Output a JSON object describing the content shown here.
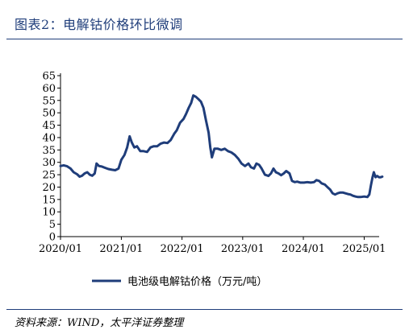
{
  "figure": {
    "title": "图表2：电解钴价格环比微调",
    "source": "资料来源：WIND，太平洋证券整理"
  },
  "colors": {
    "title": "#1f3d7a",
    "series": "#1f3d7a",
    "axis": "#000000"
  },
  "chart_data": {
    "type": "line",
    "title": "",
    "xlabel": "",
    "ylabel": "",
    "ylim": [
      0,
      65
    ],
    "yticks": [
      "0",
      "5",
      "10",
      "15",
      "20",
      "25",
      "30",
      "35",
      "40",
      "45",
      "50",
      "55",
      "60",
      "65"
    ],
    "xlim": [
      "2020-01",
      "2025-04"
    ],
    "xticks": [
      "2020/01",
      "2021/01",
      "2022/01",
      "2023/01",
      "2024/01",
      "2025/01"
    ],
    "grid": false,
    "legend": "bottom",
    "series": [
      {
        "name": "电池级电解钴价格（万元/吨）",
        "points": [
          [
            "2020-01-01",
            28.5
          ],
          [
            "2020-01-20",
            28.8
          ],
          [
            "2020-02-10",
            28.4
          ],
          [
            "2020-03-01",
            27.5
          ],
          [
            "2020-03-20",
            26.0
          ],
          [
            "2020-04-10",
            25.2
          ],
          [
            "2020-04-25",
            24.2
          ],
          [
            "2020-05-10",
            24.6
          ],
          [
            "2020-05-25",
            25.5
          ],
          [
            "2020-06-10",
            26.0
          ],
          [
            "2020-06-25",
            25.0
          ],
          [
            "2020-07-10",
            24.6
          ],
          [
            "2020-07-25",
            25.5
          ],
          [
            "2020-08-05",
            29.5
          ],
          [
            "2020-08-20",
            28.5
          ],
          [
            "2020-09-05",
            28.3
          ],
          [
            "2020-09-25",
            27.8
          ],
          [
            "2020-10-15",
            27.3
          ],
          [
            "2020-11-05",
            27.0
          ],
          [
            "2020-11-25",
            26.8
          ],
          [
            "2020-12-15",
            27.5
          ],
          [
            "2021-01-01",
            31.0
          ],
          [
            "2021-01-20",
            33.0
          ],
          [
            "2021-02-05",
            36.0
          ],
          [
            "2021-02-20",
            40.5
          ],
          [
            "2021-03-05",
            38.0
          ],
          [
            "2021-03-20",
            36.0
          ],
          [
            "2021-04-05",
            36.5
          ],
          [
            "2021-04-25",
            34.5
          ],
          [
            "2021-05-15",
            34.5
          ],
          [
            "2021-06-05",
            34.2
          ],
          [
            "2021-06-25",
            36.0
          ],
          [
            "2021-07-15",
            36.5
          ],
          [
            "2021-08-05",
            36.5
          ],
          [
            "2021-08-25",
            37.5
          ],
          [
            "2021-09-15",
            38.0
          ],
          [
            "2021-10-05",
            37.8
          ],
          [
            "2021-10-25",
            39.0
          ],
          [
            "2021-11-15",
            41.5
          ],
          [
            "2021-12-01",
            43.0
          ],
          [
            "2021-12-20",
            46.0
          ],
          [
            "2022-01-10",
            47.5
          ],
          [
            "2022-01-25",
            49.5
          ],
          [
            "2022-02-10",
            52.0
          ],
          [
            "2022-02-25",
            54.0
          ],
          [
            "2022-03-10",
            57.0
          ],
          [
            "2022-03-25",
            56.5
          ],
          [
            "2022-04-10",
            55.5
          ],
          [
            "2022-04-25",
            54.5
          ],
          [
            "2022-05-10",
            52.0
          ],
          [
            "2022-05-25",
            47.0
          ],
          [
            "2022-06-10",
            42.0
          ],
          [
            "2022-06-20",
            36.0
          ],
          [
            "2022-06-30",
            32.0
          ],
          [
            "2022-07-15",
            35.5
          ],
          [
            "2022-08-05",
            35.5
          ],
          [
            "2022-08-25",
            35.0
          ],
          [
            "2022-09-15",
            35.5
          ],
          [
            "2022-10-05",
            34.5
          ],
          [
            "2022-10-25",
            34.0
          ],
          [
            "2022-11-15",
            33.0
          ],
          [
            "2022-12-05",
            31.5
          ],
          [
            "2022-12-25",
            29.5
          ],
          [
            "2023-01-15",
            28.5
          ],
          [
            "2023-02-05",
            29.5
          ],
          [
            "2023-02-20",
            28.0
          ],
          [
            "2023-03-10",
            27.5
          ],
          [
            "2023-03-25",
            29.5
          ],
          [
            "2023-04-10",
            29.0
          ],
          [
            "2023-04-25",
            27.5
          ],
          [
            "2023-05-15",
            25.0
          ],
          [
            "2023-06-05",
            24.5
          ],
          [
            "2023-06-20",
            25.5
          ],
          [
            "2023-07-05",
            27.5
          ],
          [
            "2023-07-20",
            26.0
          ],
          [
            "2023-08-05",
            25.5
          ],
          [
            "2023-08-20",
            24.8
          ],
          [
            "2023-09-05",
            25.5
          ],
          [
            "2023-09-20",
            26.5
          ],
          [
            "2023-10-10",
            25.5
          ],
          [
            "2023-10-25",
            22.5
          ],
          [
            "2023-11-10",
            22.0
          ],
          [
            "2023-11-25",
            22.2
          ],
          [
            "2023-12-15",
            21.8
          ],
          [
            "2024-01-05",
            21.8
          ],
          [
            "2024-01-25",
            22.0
          ],
          [
            "2024-02-15",
            21.8
          ],
          [
            "2024-03-05",
            22.0
          ],
          [
            "2024-03-20",
            22.8
          ],
          [
            "2024-04-05",
            22.5
          ],
          [
            "2024-04-20",
            21.5
          ],
          [
            "2024-05-10",
            21.0
          ],
          [
            "2024-05-25",
            20.0
          ],
          [
            "2024-06-10",
            19.0
          ],
          [
            "2024-06-25",
            17.5
          ],
          [
            "2024-07-10",
            17.0
          ],
          [
            "2024-07-25",
            17.5
          ],
          [
            "2024-08-10",
            17.8
          ],
          [
            "2024-08-25",
            17.8
          ],
          [
            "2024-09-10",
            17.5
          ],
          [
            "2024-09-25",
            17.2
          ],
          [
            "2024-10-10",
            17.0
          ],
          [
            "2024-10-25",
            16.5
          ],
          [
            "2024-11-10",
            16.2
          ],
          [
            "2024-11-25",
            16.0
          ],
          [
            "2024-12-10",
            16.0
          ],
          [
            "2025-01-01",
            16.2
          ],
          [
            "2025-01-20",
            16.0
          ],
          [
            "2025-02-01",
            17.0
          ],
          [
            "2025-02-10",
            20.5
          ],
          [
            "2025-02-20",
            24.0
          ],
          [
            "2025-02-28",
            26.0
          ],
          [
            "2025-03-10",
            24.0
          ],
          [
            "2025-03-20",
            24.5
          ],
          [
            "2025-03-31",
            24.0
          ],
          [
            "2025-04-10",
            24.0
          ],
          [
            "2025-04-20",
            24.2
          ]
        ]
      }
    ]
  }
}
